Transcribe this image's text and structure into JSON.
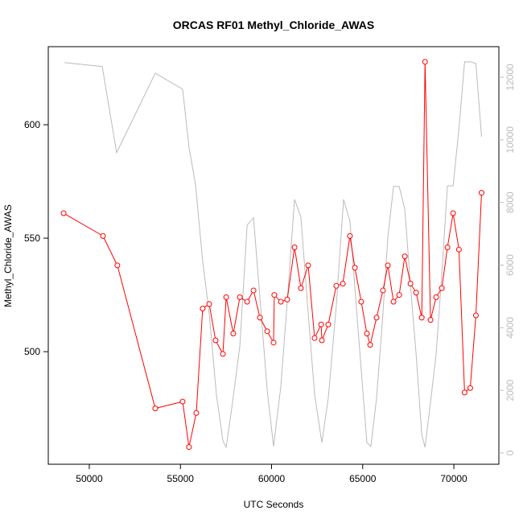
{
  "chart_data": {
    "type": "line",
    "title": "ORCAS RF01 Methyl_Chloride_AWAS",
    "xlabel": "UTC Seconds",
    "ylabel": "Methyl_Chloride_AWAS",
    "xlim": [
      47750,
      72470
    ],
    "xticks": [
      50000,
      55000,
      60000,
      65000,
      70000
    ],
    "ylim": [
      450.4,
      634.4
    ],
    "yticks": [
      500,
      550,
      600
    ],
    "y2lim": [
      -360,
      12976
    ],
    "y2ticks": [
      0,
      2000,
      4000,
      6000,
      8000,
      10000,
      12000
    ],
    "y2color": "#bbbbbb",
    "series": [
      {
        "color": "#bbbbbb",
        "axis": "y2",
        "markers": false,
        "x": [
          48640,
          50710,
          51500,
          53620,
          55120,
          55470,
          55830,
          56220,
          56580,
          56970,
          57330,
          57510,
          57860,
          58260,
          58660,
          59010,
          59360,
          59760,
          60110,
          60510,
          60860,
          61260,
          61610,
          61970,
          62360,
          62760,
          63110,
          63550,
          63950,
          64300,
          64610,
          64920,
          65230,
          65450,
          65760,
          66110,
          66380,
          66690,
          67000,
          67310,
          67620,
          67930,
          68240,
          68420,
          68720,
          69030,
          69340,
          69650,
          69960,
          70280,
          70590,
          70900,
          71210,
          71520
        ],
        "values": [
          12470,
          12340,
          9590,
          12130,
          11620,
          9770,
          8560,
          6120,
          4450,
          1880,
          390,
          180,
          1620,
          3420,
          7280,
          7510,
          4960,
          2010,
          210,
          2130,
          4830,
          8100,
          7530,
          4760,
          1880,
          330,
          1750,
          4700,
          8100,
          7400,
          4960,
          2650,
          330,
          210,
          1750,
          4450,
          6890,
          8510,
          8510,
          7790,
          5350,
          3160,
          590,
          180,
          1620,
          3160,
          5730,
          8530,
          8530,
          10360,
          12490,
          12490,
          12440,
          10100
        ]
      },
      {
        "color": "#ff0000",
        "axis": "y",
        "markers": true,
        "x": [
          48590,
          50750,
          51540,
          53620,
          55120,
          55470,
          55870,
          56220,
          56580,
          56930,
          57330,
          57510,
          57900,
          58260,
          58660,
          59010,
          59360,
          59760,
          60110,
          60150,
          60510,
          60860,
          61260,
          61610,
          62010,
          62360,
          62720,
          62760,
          63110,
          63550,
          63910,
          64300,
          64570,
          64920,
          65230,
          65410,
          65760,
          66110,
          66380,
          66690,
          67000,
          67310,
          67620,
          67930,
          68240,
          68420,
          68720,
          69030,
          69340,
          69650,
          69960,
          70280,
          70590,
          70900,
          71210,
          71520
        ],
        "values": [
          561,
          551,
          538,
          475,
          478,
          458,
          473,
          519,
          521,
          505,
          499,
          524,
          508,
          524,
          522,
          527,
          515,
          509,
          504,
          525,
          522,
          523,
          546,
          528,
          538,
          506,
          512,
          505,
          512,
          529,
          530,
          551,
          537,
          522,
          508,
          503,
          515,
          527,
          538,
          522,
          525,
          542,
          530,
          526,
          515,
          627.7,
          514,
          524,
          528,
          546,
          561,
          545,
          482,
          484,
          516,
          570
        ]
      }
    ]
  }
}
